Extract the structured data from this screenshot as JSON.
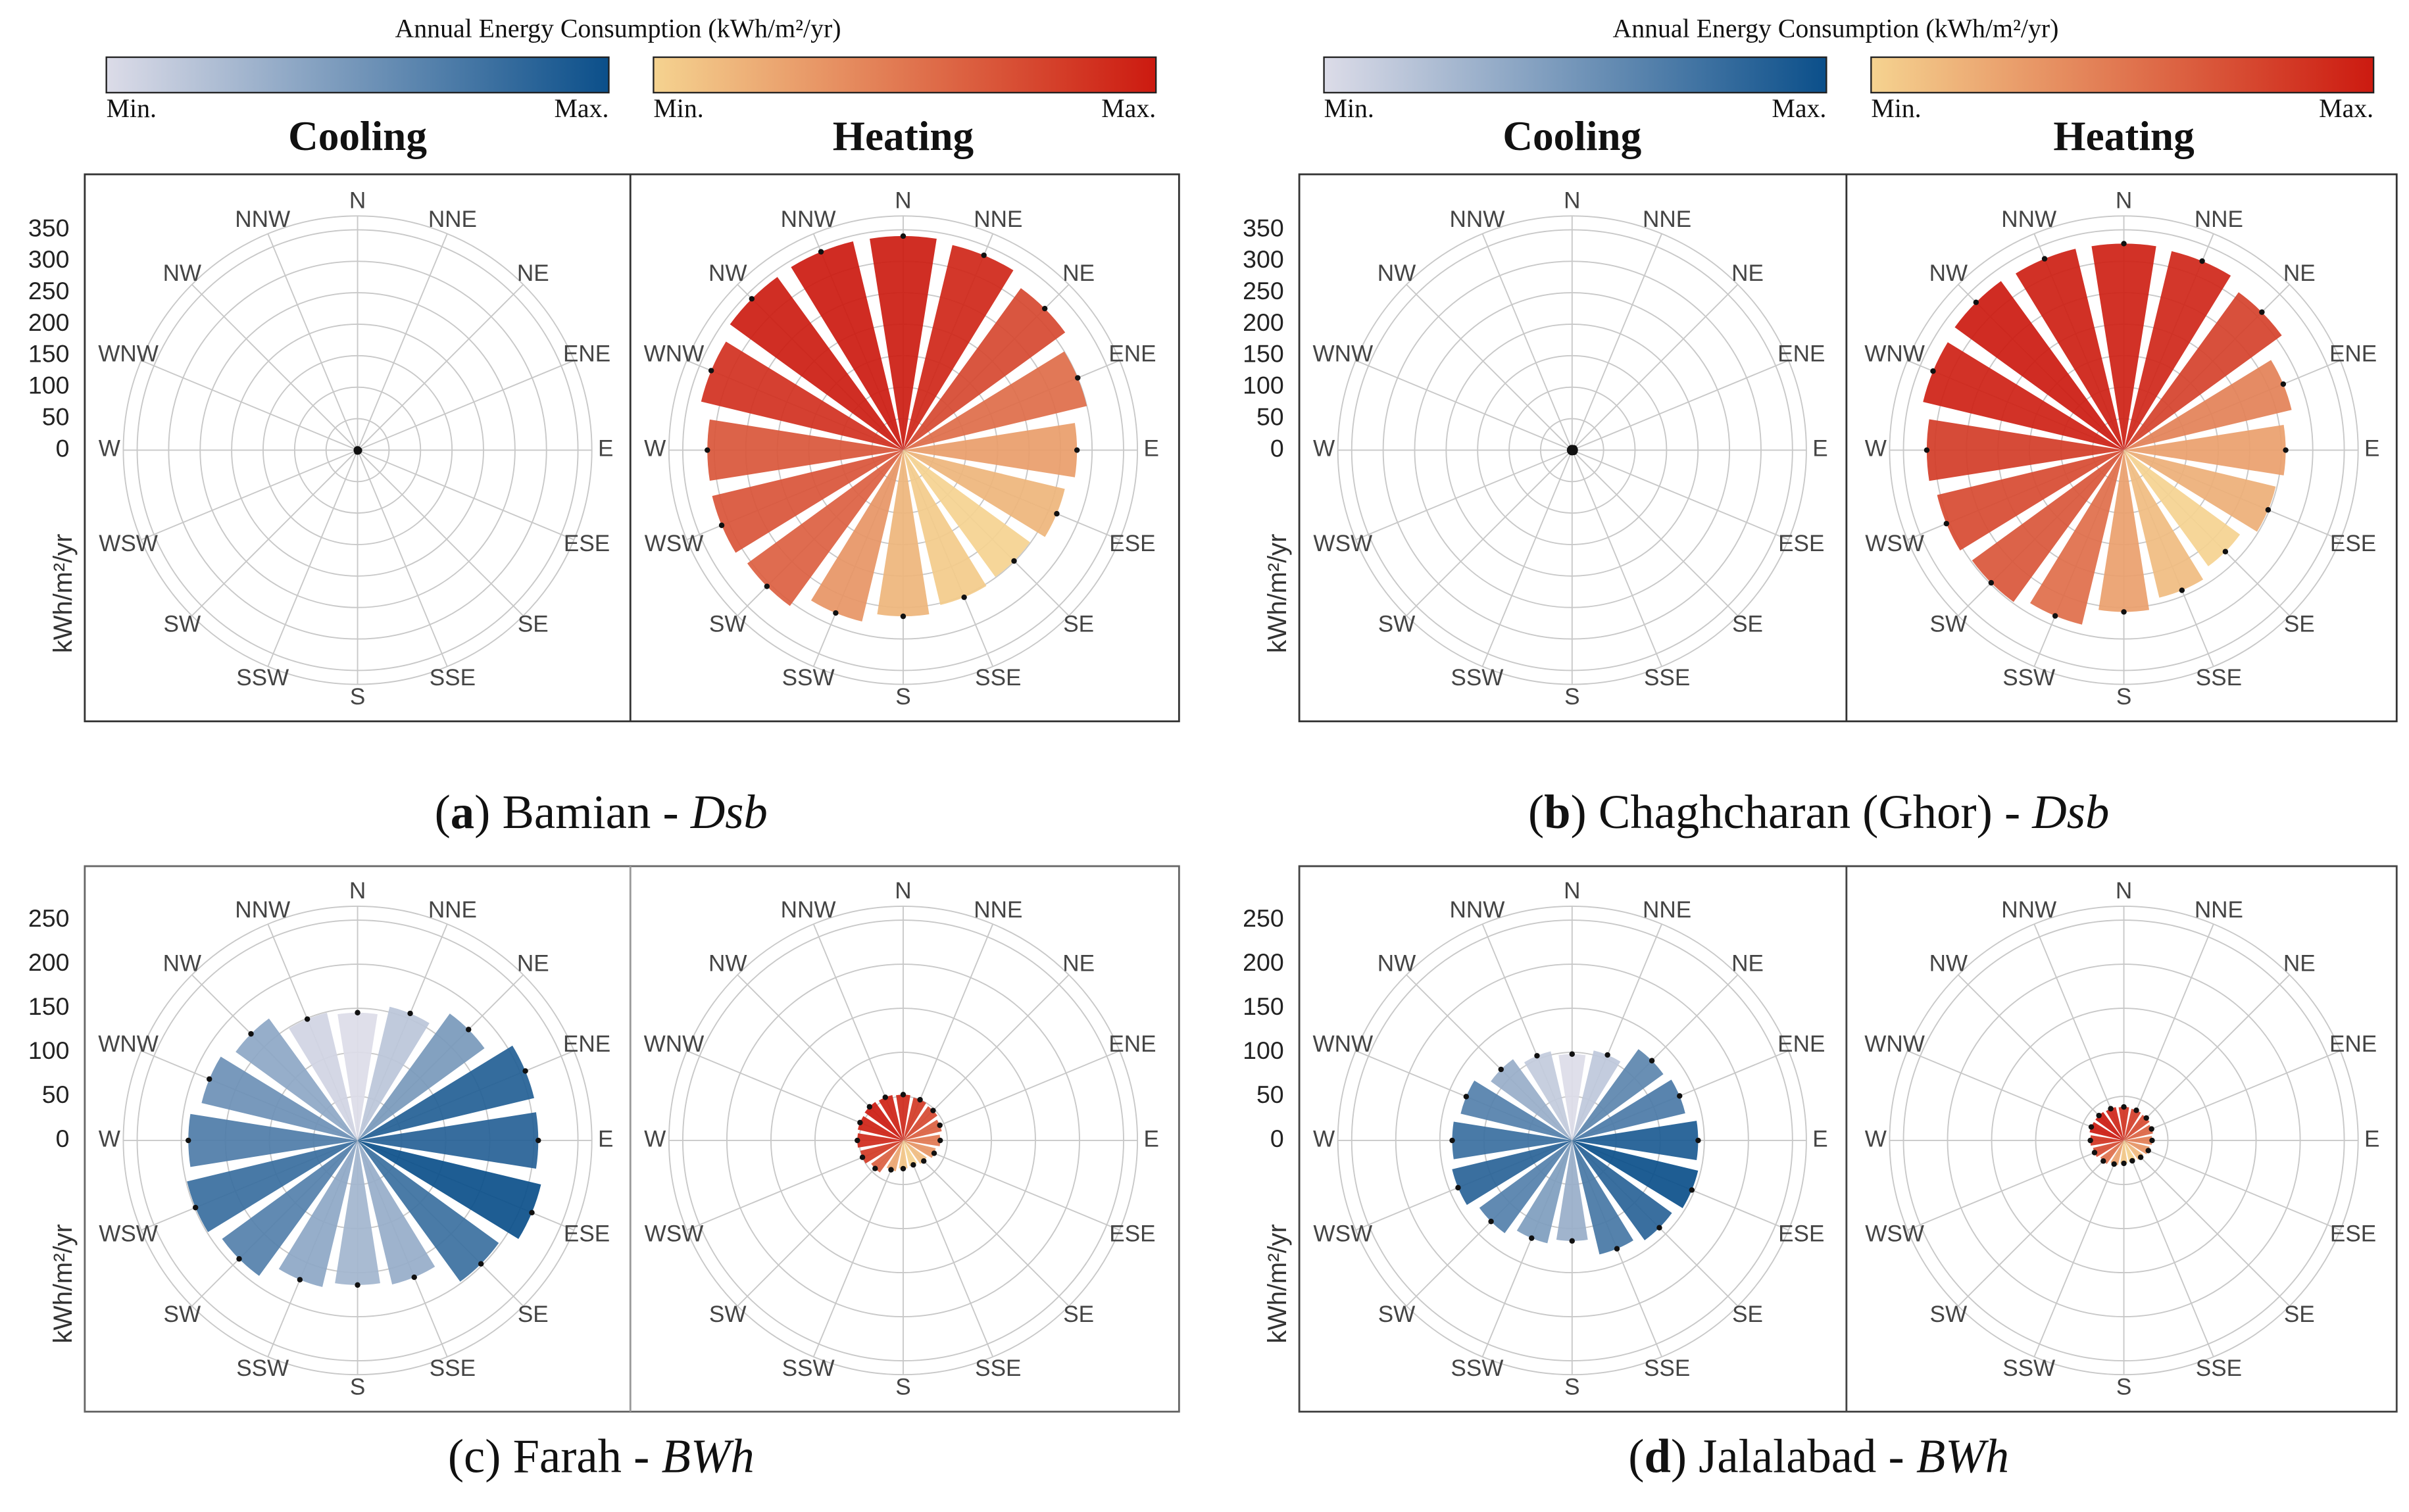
{
  "legends": [
    {
      "title": "Annual Energy Consumption (kWh/m²/yr)",
      "scales": [
        {
          "min": "Min.",
          "max": "Max.",
          "colors": [
            "#dcdce8",
            "#0b4f8a"
          ]
        },
        {
          "min": "Min.",
          "max": "Max.",
          "colors": [
            "#f5d390",
            "#cc1a10"
          ]
        }
      ]
    },
    {
      "title": "Annual Energy Consumption (kWh/m²/yr)",
      "scales": [
        {
          "min": "Min.",
          "max": "Max.",
          "colors": [
            "#dcdce8",
            "#0b4f8a"
          ]
        },
        {
          "min": "Min.",
          "max": "Max.",
          "colors": [
            "#f5d390",
            "#cc1a10"
          ]
        }
      ]
    }
  ],
  "captions": [
    {
      "text": [
        "(",
        "a",
        ") Bamian - ",
        "Dsb"
      ],
      "bold": true
    },
    {
      "text": [
        "(",
        "b",
        ") Chaghcharan (Ghor) - ",
        "Dsb"
      ],
      "bold": true
    },
    {
      "text": [
        "(",
        "c",
        ") Farah - ",
        "BWh"
      ],
      "bold": false
    },
    {
      "text": [
        "(",
        "d",
        ") Jalalabad - ",
        "BWh"
      ],
      "bold": true
    }
  ],
  "chart_data": [
    {
      "type": "polar_bar",
      "title": "Cooling",
      "ylabel": "kWh/m²/yr",
      "categories": [
        "N",
        "NNE",
        "NE",
        "ENE",
        "E",
        "ESE",
        "SE",
        "SSE",
        "S",
        "SSW",
        "SW",
        "WSW",
        "W",
        "WNW",
        "NW",
        "NNW"
      ],
      "values": [
        2,
        2,
        2,
        2,
        3,
        3,
        3,
        3,
        3,
        3,
        2,
        2,
        2,
        2,
        2,
        2
      ],
      "colors": [
        "#dcdce8",
        "#0b4f8a"
      ],
      "ylim": [
        0,
        350
      ],
      "yticks": [
        0,
        50,
        100,
        150,
        200,
        250,
        300,
        350
      ]
    },
    {
      "type": "polar_bar",
      "title": "Heating",
      "categories": [
        "N",
        "NNE",
        "NE",
        "ENE",
        "E",
        "ESE",
        "SE",
        "SSE",
        "S",
        "SSW",
        "SW",
        "WSW",
        "W",
        "WNW",
        "NW",
        "NNW"
      ],
      "values": [
        340,
        335,
        318,
        300,
        276,
        264,
        249,
        253,
        264,
        280,
        306,
        312,
        311,
        330,
        340,
        341
      ],
      "colors": [
        "#f5d390",
        "#cc1a10"
      ],
      "ylim": [
        0,
        350
      ],
      "yticks": [
        0,
        50,
        100,
        150,
        200,
        250,
        300,
        350
      ]
    },
    {
      "type": "polar_bar",
      "title": "Cooling",
      "ylabel": "kWh/m²/yr",
      "categories": [
        "N",
        "NNE",
        "NE",
        "ENE",
        "E",
        "ESE",
        "SE",
        "SSE",
        "S",
        "SSW",
        "SW",
        "WSW",
        "W",
        "WNW",
        "NW",
        "NNW"
      ],
      "values": [
        4,
        4,
        5,
        5,
        5,
        5,
        5,
        4,
        4,
        4,
        4,
        4,
        4,
        4,
        4,
        4
      ],
      "colors": [
        "#dcdce8",
        "#0b4f8a"
      ],
      "ylim": [
        0,
        350
      ],
      "yticks": [
        0,
        50,
        100,
        150,
        200,
        250,
        300,
        350
      ]
    },
    {
      "type": "polar_bar",
      "title": "Heating",
      "categories": [
        "N",
        "NNE",
        "NE",
        "ENE",
        "E",
        "ESE",
        "SE",
        "SSE",
        "S",
        "SSW",
        "SW",
        "WSW",
        "W",
        "WNW",
        "NW",
        "NNW"
      ],
      "values": [
        328,
        325,
        310,
        274,
        257,
        248,
        228,
        241,
        257,
        285,
        298,
        305,
        313,
        328,
        332,
        329
      ],
      "colors": [
        "#f5d390",
        "#cc1a10"
      ],
      "ylim": [
        0,
        350
      ],
      "yticks": [
        0,
        50,
        100,
        150,
        200,
        250,
        300,
        350
      ]
    },
    {
      "type": "polar_bar",
      "ylabel": "kWh/m²/yr",
      "categories": [
        "N",
        "NNE",
        "NE",
        "ENE",
        "E",
        "ESE",
        "SE",
        "SSE",
        "S",
        "SSW",
        "SW",
        "WSW",
        "W",
        "WNW",
        "NW",
        "NNW"
      ],
      "values": [
        145,
        156,
        178,
        206,
        205,
        214,
        198,
        168,
        164,
        171,
        190,
        199,
        192,
        182,
        171,
        149
      ],
      "colors": [
        "#dcdce8",
        "#0b4f8a"
      ],
      "ylim": [
        0,
        250
      ],
      "yticks": [
        0,
        50,
        100,
        150,
        200,
        250
      ]
    },
    {
      "type": "polar_bar",
      "categories": [
        "N",
        "NNE",
        "NE",
        "ENE",
        "E",
        "ESE",
        "SE",
        "SSE",
        "S",
        "SSW",
        "SW",
        "WSW",
        "W",
        "WNW",
        "NW",
        "NNW"
      ],
      "values": [
        52,
        50,
        48,
        45,
        42,
        38,
        33,
        30,
        32,
        36,
        45,
        50,
        52,
        53,
        54,
        53
      ],
      "colors": [
        "#f5d390",
        "#cc1a10"
      ],
      "ylim": [
        0,
        250
      ],
      "yticks": [
        0,
        50,
        100,
        150,
        200,
        250
      ]
    },
    {
      "type": "polar_bar",
      "ylabel": "kWh/m²/yr",
      "categories": [
        "N",
        "NNE",
        "NE",
        "ENE",
        "E",
        "ESE",
        "SE",
        "SSE",
        "S",
        "SSW",
        "SW",
        "WSW",
        "W",
        "WNW",
        "NW",
        "NNW"
      ],
      "values": [
        98,
        105,
        128,
        132,
        143,
        147,
        140,
        133,
        114,
        120,
        130,
        140,
        136,
        130,
        114,
        104
      ],
      "colors": [
        "#dcdce8",
        "#0b4f8a"
      ],
      "ylim": [
        0,
        250
      ],
      "yticks": [
        0,
        50,
        100,
        150,
        200,
        250
      ]
    },
    {
      "type": "polar_bar",
      "categories": [
        "N",
        "NNE",
        "NE",
        "ENE",
        "E",
        "ESE",
        "SE",
        "SSE",
        "S",
        "SSW",
        "SW",
        "WSW",
        "W",
        "WNW",
        "NW",
        "NNW"
      ],
      "values": [
        38,
        37,
        36,
        34,
        32,
        30,
        27,
        25,
        26,
        29,
        33,
        36,
        38,
        40,
        40,
        39
      ],
      "colors": [
        "#f5d390",
        "#cc1a10"
      ],
      "ylim": [
        0,
        250
      ],
      "yticks": [
        0,
        50,
        100,
        150,
        200,
        250
      ]
    }
  ]
}
